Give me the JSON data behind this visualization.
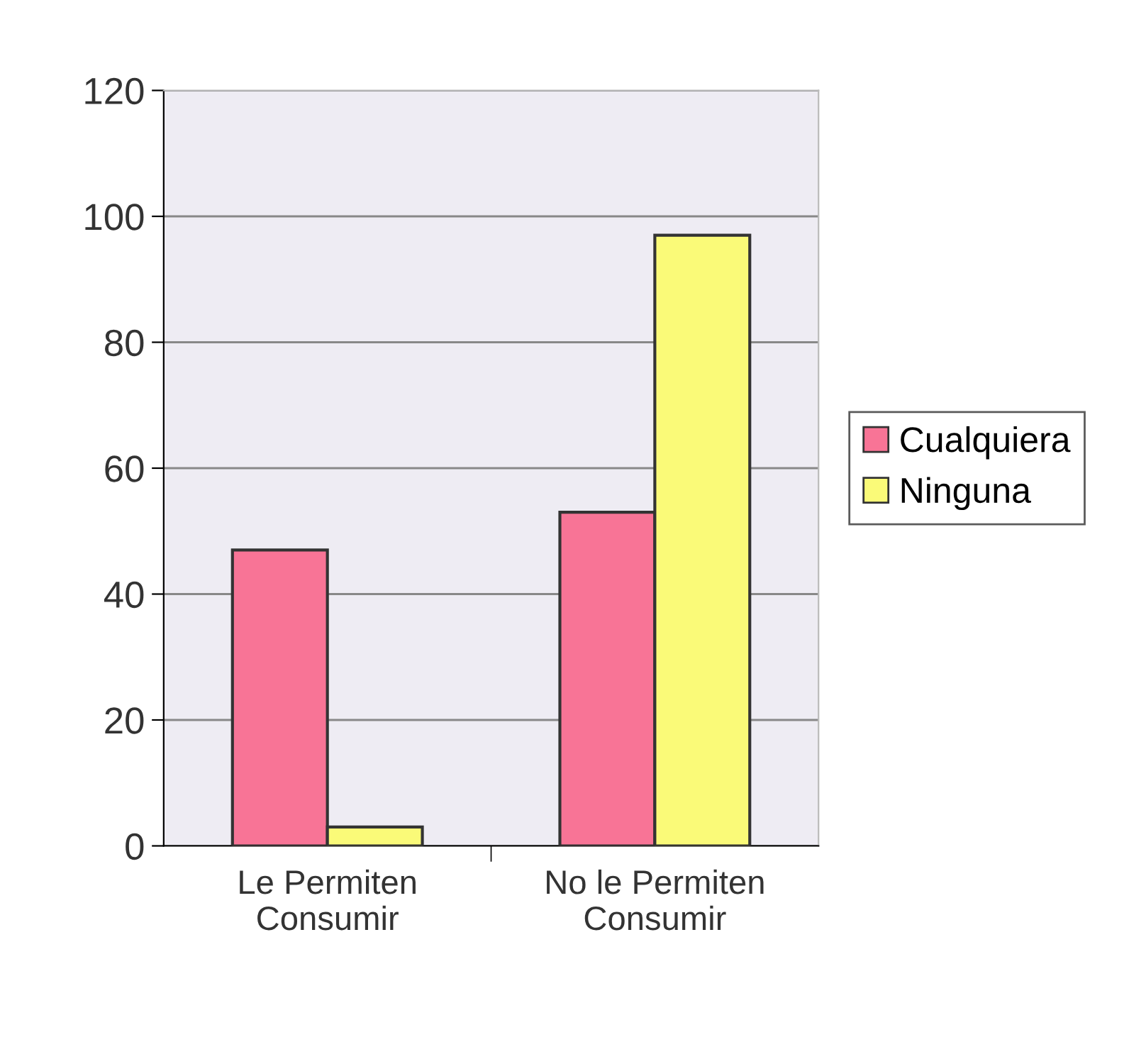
{
  "chart_data": {
    "type": "bar",
    "categories": [
      "Le Permiten\nConsumir",
      "No le Permiten\nConsumir"
    ],
    "series": [
      {
        "name": "Cualquiera",
        "color": "#f87496",
        "values": [
          47,
          53
        ]
      },
      {
        "name": "Ninguna",
        "color": "#fafa78",
        "values": [
          3,
          97
        ]
      }
    ],
    "ylim": [
      0,
      120
    ],
    "yticks": [
      0,
      20,
      40,
      60,
      80,
      100,
      120
    ],
    "grid": "y",
    "legend": "right"
  }
}
